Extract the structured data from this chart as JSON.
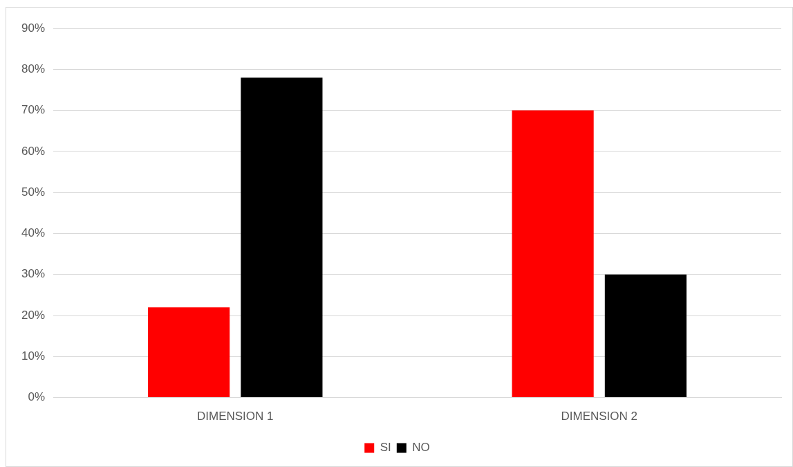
{
  "chart_data": {
    "type": "bar",
    "categories": [
      "DIMENSION 1",
      "DIMENSION 2"
    ],
    "series": [
      {
        "name": "SI",
        "color": "#ff0000",
        "values": [
          22,
          70
        ]
      },
      {
        "name": "NO",
        "color": "#000000",
        "values": [
          78,
          30
        ]
      }
    ],
    "ylim": [
      0,
      90
    ],
    "yticks": [
      {
        "value": 0,
        "label": "0%"
      },
      {
        "value": 10,
        "label": "10%"
      },
      {
        "value": 20,
        "label": "20%"
      },
      {
        "value": 30,
        "label": "30%"
      },
      {
        "value": 40,
        "label": "40%"
      },
      {
        "value": 50,
        "label": "50%"
      },
      {
        "value": 60,
        "label": "60%"
      },
      {
        "value": 70,
        "label": "70%"
      },
      {
        "value": 80,
        "label": "80%"
      },
      {
        "value": 90,
        "label": "90%"
      }
    ],
    "grid": "y",
    "legend": "bottom"
  }
}
